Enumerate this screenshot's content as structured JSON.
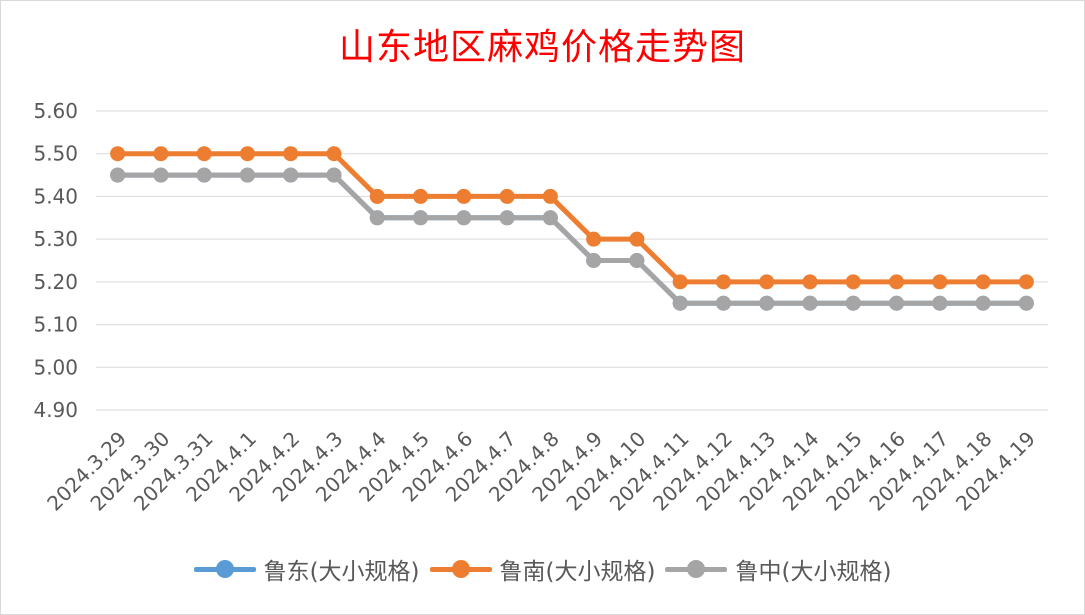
{
  "chart_data": {
    "type": "line",
    "title": "山东地区麻鸡价格走势图",
    "xlabel": "",
    "ylabel": "",
    "categories": [
      "2024.3.29",
      "2024.3.30",
      "2024.3.31",
      "2024.4.1",
      "2024.4.2",
      "2024.4.3",
      "2024.4.4",
      "2024.4.5",
      "2024.4.6",
      "2024.4.7",
      "2024.4.8",
      "2024.4.9",
      "2024.4.10",
      "2024.4.11",
      "2024.4.12",
      "2024.4.13",
      "2024.4.14",
      "2024.4.15",
      "2024.4.16",
      "2024.4.17",
      "2024.4.18",
      "2024.4.19"
    ],
    "ylim": [
      4.9,
      5.6
    ],
    "yticks": [
      "5.60",
      "5.50",
      "5.40",
      "5.30",
      "5.20",
      "5.10",
      "5.00",
      "4.90"
    ],
    "grid": true,
    "legend_position": "bottom",
    "series": [
      {
        "name": "鲁东(大小规格)",
        "color": "#5b9bd5",
        "values": [
          5.45,
          5.45,
          5.45,
          5.45,
          5.45,
          5.45,
          5.35,
          5.35,
          5.35,
          5.35,
          5.35,
          5.25,
          5.25,
          5.15,
          5.15,
          5.15,
          5.15,
          5.15,
          5.15,
          5.15,
          5.15,
          5.15
        ]
      },
      {
        "name": "鲁南(大小规格)",
        "color": "#ed7d31",
        "values": [
          5.5,
          5.5,
          5.5,
          5.5,
          5.5,
          5.5,
          5.4,
          5.4,
          5.4,
          5.4,
          5.4,
          5.3,
          5.3,
          5.2,
          5.2,
          5.2,
          5.2,
          5.2,
          5.2,
          5.2,
          5.2,
          5.2
        ]
      },
      {
        "name": "鲁中(大小规格)",
        "color": "#a5a5a5",
        "values": [
          5.45,
          5.45,
          5.45,
          5.45,
          5.45,
          5.45,
          5.35,
          5.35,
          5.35,
          5.35,
          5.35,
          5.25,
          5.25,
          5.15,
          5.15,
          5.15,
          5.15,
          5.15,
          5.15,
          5.15,
          5.15,
          5.15
        ]
      }
    ]
  }
}
